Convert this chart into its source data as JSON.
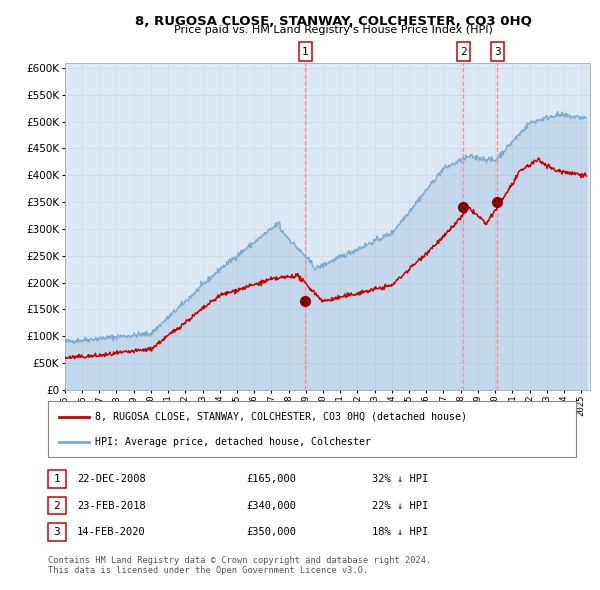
{
  "title": "8, RUGOSA CLOSE, STANWAY, COLCHESTER, CO3 0HQ",
  "subtitle": "Price paid vs. HM Land Registry's House Price Index (HPI)",
  "plot_bg_color": "#dce9f5",
  "hpi_color": "#7aaad0",
  "price_color": "#cc0000",
  "sale_marker_color": "#880000",
  "dashed_line_color": "#ff8888",
  "yticks": [
    0,
    50000,
    100000,
    150000,
    200000,
    250000,
    300000,
    350000,
    400000,
    450000,
    500000,
    550000,
    600000
  ],
  "sale1": {
    "date_num": 2008.97,
    "price": 165000,
    "label": "1",
    "date_str": "22-DEC-2008",
    "pct": "32%"
  },
  "sale2": {
    "date_num": 2018.14,
    "price": 340000,
    "label": "2",
    "date_str": "23-FEB-2018",
    "pct": "22%"
  },
  "sale3": {
    "date_num": 2020.12,
    "price": 350000,
    "label": "3",
    "date_str": "14-FEB-2020",
    "pct": "18%"
  },
  "legend_label_red": "8, RUGOSA CLOSE, STANWAY, COLCHESTER, CO3 0HQ (detached house)",
  "legend_label_blue": "HPI: Average price, detached house, Colchester",
  "footer": "Contains HM Land Registry data © Crown copyright and database right 2024.\nThis data is licensed under the Open Government Licence v3.0.",
  "xmin": 1995.0,
  "xmax": 2025.5
}
